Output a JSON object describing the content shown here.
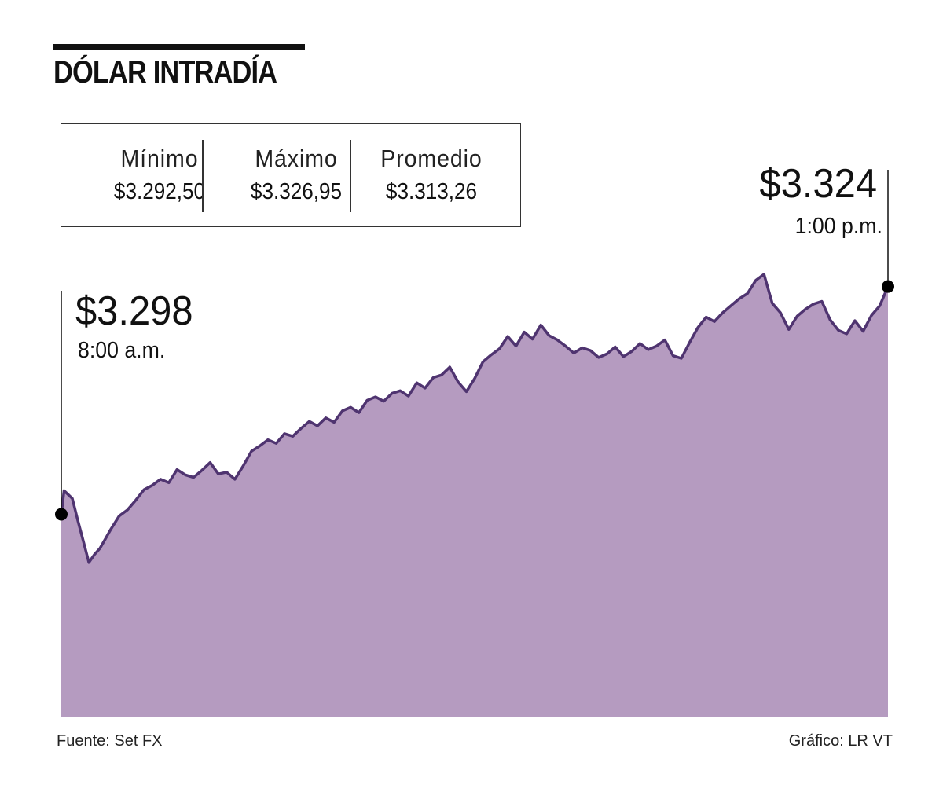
{
  "title": "DÓLAR INTRADÍA",
  "stats": [
    {
      "label": "Mínimo",
      "value": "$3.292,50"
    },
    {
      "label": "Máximo",
      "value": "$3.326,95"
    },
    {
      "label": "Promedio",
      "value": "$3.313,26"
    }
  ],
  "callouts": {
    "open": {
      "price": "$3.298",
      "time": "8:00 a.m."
    },
    "close": {
      "price": "$3.324",
      "time": "1:00 p.m."
    }
  },
  "footer": {
    "source": "Fuente: Set FX",
    "credit": "Gráfico: LR VT"
  },
  "colors": {
    "area_fill": "#b59bc0",
    "line": "#4f3470",
    "marker": "#000000"
  },
  "chart_data": {
    "type": "area",
    "title": "DÓLAR INTRADÍA",
    "xlabel": "",
    "ylabel": "",
    "x_range": [
      "8:00 a.m.",
      "1:00 p.m."
    ],
    "ylim": [
      3274.9,
      3328.0
    ],
    "grid": false,
    "legend": "none",
    "series": [
      {
        "x": [
          "8:00",
          "8:01",
          "8:02",
          "8:04",
          "8:06",
          "8:08",
          "8:10",
          "8:12",
          "8:14",
          "8:16",
          "8:18",
          "8:21",
          "8:24",
          "8:27",
          "8:30",
          "8:33",
          "8:36",
          "8:39",
          "8:42",
          "8:45",
          "8:48",
          "8:51",
          "8:54",
          "8:57",
          "9:00",
          "9:03",
          "9:06",
          "9:09",
          "9:12",
          "9:15",
          "9:18",
          "9:21",
          "9:24",
          "9:27",
          "9:30",
          "9:33",
          "9:36",
          "9:39",
          "9:42",
          "9:45",
          "9:48",
          "9:51",
          "9:54",
          "9:57",
          "10:00",
          "10:03",
          "10:06",
          "10:09",
          "10:12",
          "10:15",
          "10:18",
          "10:21",
          "10:24",
          "10:27",
          "10:30",
          "10:33",
          "10:36",
          "10:39",
          "10:42",
          "10:45",
          "10:48",
          "10:51",
          "10:54",
          "10:57",
          "11:00",
          "11:03",
          "11:06",
          "11:09",
          "11:12",
          "11:15",
          "11:18",
          "11:21",
          "11:24",
          "11:27",
          "11:30",
          "11:33",
          "11:36",
          "11:39",
          "11:42",
          "11:45",
          "11:48",
          "11:51",
          "11:54",
          "11:57",
          "12:00",
          "12:03",
          "12:06",
          "12:09",
          "12:12",
          "12:15",
          "12:18",
          "12:21",
          "12:24",
          "12:27",
          "12:30",
          "12:33",
          "12:36",
          "12:39",
          "12:42",
          "12:45",
          "12:48",
          "12:51",
          "12:54",
          "12:57",
          "13:00"
        ],
        "y": [
          3298.0,
          3300.7,
          3300.4,
          3299.8,
          3297.3,
          3294.9,
          3292.5,
          3293.4,
          3294.1,
          3295.2,
          3296.3,
          3297.8,
          3298.5,
          3299.6,
          3300.8,
          3301.3,
          3302.0,
          3301.6,
          3303.1,
          3302.5,
          3302.2,
          3303.0,
          3303.9,
          3302.6,
          3302.8,
          3302.0,
          3303.5,
          3305.2,
          3305.8,
          3306.5,
          3306.1,
          3307.2,
          3306.9,
          3307.8,
          3308.6,
          3308.1,
          3309.0,
          3308.5,
          3309.8,
          3310.2,
          3309.6,
          3311.0,
          3311.4,
          3310.9,
          3311.8,
          3312.1,
          3311.5,
          3313.0,
          3312.4,
          3313.6,
          3313.9,
          3314.8,
          3313.1,
          3312.0,
          3313.5,
          3315.4,
          3316.2,
          3316.9,
          3318.3,
          3317.2,
          3318.8,
          3318.0,
          3319.6,
          3318.4,
          3317.9,
          3317.2,
          3316.4,
          3317.0,
          3316.7,
          3315.9,
          3316.3,
          3317.1,
          3316.0,
          3316.6,
          3317.5,
          3316.8,
          3317.2,
          3317.9,
          3316.1,
          3315.8,
          3317.6,
          3319.3,
          3320.5,
          3320.0,
          3321.0,
          3321.8,
          3322.6,
          3323.2,
          3324.7,
          3325.4,
          3322.1,
          3321.0,
          3319.1,
          3320.6,
          3321.4,
          3322.0,
          3322.3,
          3320.2,
          3319.0,
          3318.6,
          3320.1,
          3318.9,
          3320.7,
          3321.8,
          3324.0
        ]
      }
    ],
    "markers": [
      {
        "x": "8:00",
        "y": 3298.0
      },
      {
        "x": "13:00",
        "y": 3324.0
      }
    ]
  }
}
